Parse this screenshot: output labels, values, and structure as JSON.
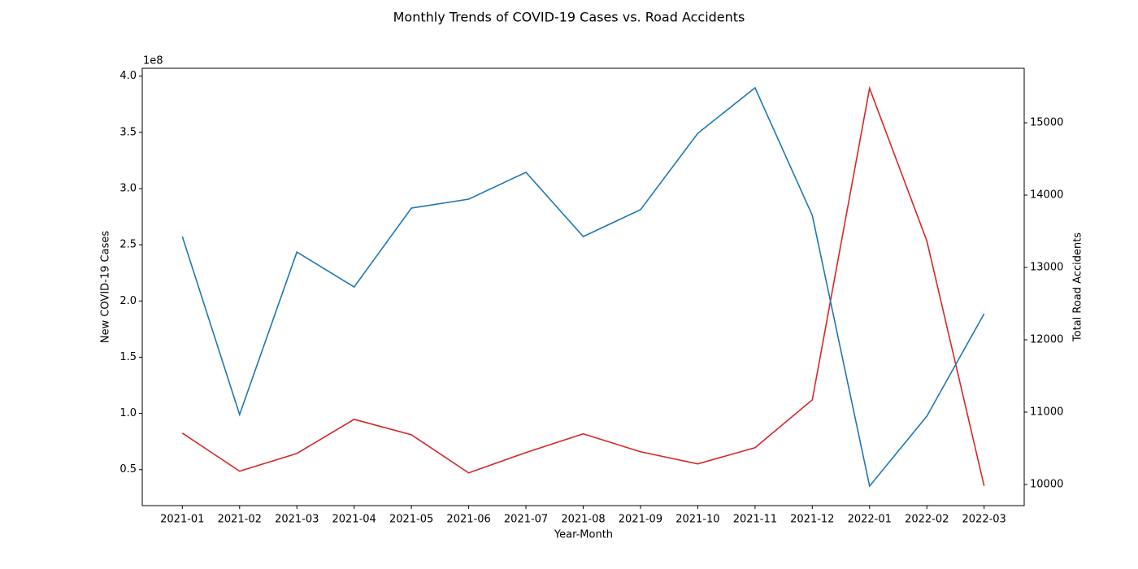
{
  "chart_data": {
    "type": "line",
    "title": "Monthly Trends of COVID-19 Cases vs. Road Accidents",
    "x_label": "Year-Month",
    "y_label": "New COVID-19 Cases",
    "y2_label": "Total Road Accidents",
    "y_offset_label": "1e8",
    "categories": [
      "2021-01",
      "2021-02",
      "2021-03",
      "2021-04",
      "2021-05",
      "2021-06",
      "2021-07",
      "2021-08",
      "2021-09",
      "2021-10",
      "2021-11",
      "2021-12",
      "2022-01",
      "2022-02",
      "2022-03"
    ],
    "ylim": [
      0.18,
      4.07
    ],
    "yticks": [
      0.5,
      {
        "value": 1,
        "label": "1.0"
      },
      1.5,
      {
        "value": 2,
        "label": "2.0"
      },
      2.5,
      {
        "value": 3,
        "label": "3.0"
      },
      3.5,
      {
        "value": 4,
        "label": "4.0"
      }
    ],
    "y2lim": [
      9708,
      15753
    ],
    "y2ticks": [
      10000,
      11000,
      12000,
      13000,
      14000,
      15000
    ],
    "series": [
      {
        "name": "New COVID-19 Cases",
        "color": "#d62728",
        "axis": "y",
        "values": [
          0.825,
          0.486,
          0.644,
          0.947,
          0.81,
          0.471,
          0.652,
          0.818,
          0.659,
          0.551,
          0.695,
          1.121,
          3.892,
          2.535,
          0.356
        ]
      },
      {
        "name": "Total Road Accidents",
        "color": "#1f77b4",
        "axis": "y2",
        "values": [
          13427,
          10966,
          13213,
          12730,
          13820,
          13944,
          14315,
          13427,
          13798,
          14854,
          15483,
          13719,
          9978,
          10944,
          12360
        ]
      }
    ]
  }
}
